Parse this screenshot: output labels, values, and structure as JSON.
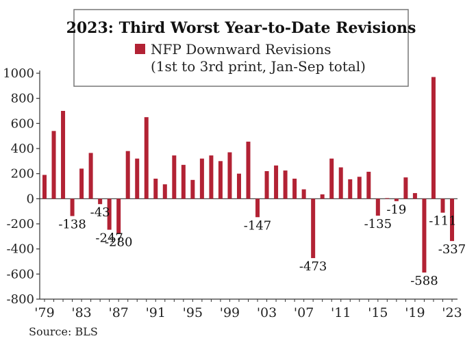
{
  "chart_data": {
    "type": "bar",
    "title": "2023: Third Worst Year-to-Date Revisions",
    "legend": {
      "placement": "top-center",
      "entries": [
        {
          "name": "NFP Downward Revisions",
          "subtitle": "(1st to 3rd print, Jan-Sep total)",
          "color": "#b22234"
        }
      ]
    },
    "source": "Source: BLS",
    "ylim": [
      -800,
      1000
    ],
    "yticks": [
      1000,
      800,
      600,
      400,
      200,
      0,
      -200,
      -400,
      -600,
      -800
    ],
    "ytick_labels": [
      "1000",
      "800",
      "600",
      "400",
      "200",
      "0",
      "-200",
      "-400",
      "-600",
      "-800"
    ],
    "xticks": [
      "'79",
      "'83",
      "'87",
      "'91",
      "'95",
      "'99",
      "'03",
      "'07",
      "'11",
      "'15",
      "'19",
      "'23"
    ],
    "grid": false,
    "bar_color": "#b22234",
    "x": [
      1979,
      1980,
      1981,
      1982,
      1983,
      1984,
      1985,
      1986,
      1987,
      1988,
      1989,
      1990,
      1991,
      1992,
      1993,
      1994,
      1995,
      1996,
      1997,
      1998,
      1999,
      2000,
      2001,
      2002,
      2003,
      2004,
      2005,
      2006,
      2007,
      2008,
      2009,
      2010,
      2011,
      2012,
      2013,
      2014,
      2015,
      2016,
      2017,
      2018,
      2019,
      2020,
      2021,
      2022,
      2023
    ],
    "values": [
      190,
      540,
      700,
      -138,
      240,
      365,
      -43,
      -247,
      -280,
      380,
      320,
      650,
      160,
      115,
      345,
      270,
      150,
      320,
      345,
      300,
      370,
      200,
      455,
      -147,
      220,
      265,
      225,
      160,
      75,
      -473,
      35,
      320,
      250,
      155,
      175,
      215,
      -135,
      5,
      -19,
      170,
      45,
      -588,
      970,
      -111,
      -337
    ],
    "data_labels": [
      {
        "x": 1982,
        "text": "-138"
      },
      {
        "x": 1985,
        "text": "-43"
      },
      {
        "x": 1986,
        "text": "-247"
      },
      {
        "x": 1987,
        "text": "-280"
      },
      {
        "x": 2002,
        "text": "-147"
      },
      {
        "x": 2008,
        "text": "-473"
      },
      {
        "x": 2015,
        "text": "-135"
      },
      {
        "x": 2017,
        "text": "-19"
      },
      {
        "x": 2020,
        "text": "-588"
      },
      {
        "x": 2022,
        "text": "-111"
      },
      {
        "x": 2023,
        "text": "-337"
      }
    ]
  }
}
